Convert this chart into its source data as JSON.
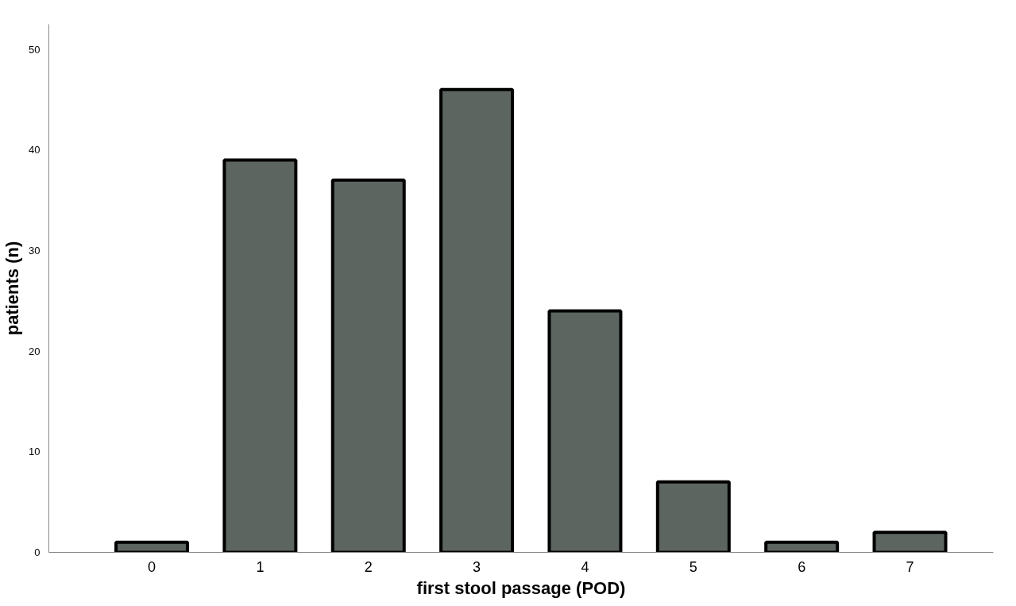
{
  "chart_data": {
    "type": "bar",
    "xlabel": "first stool passage (POD)",
    "ylabel": "patients (n)",
    "categories": [
      "0",
      "1",
      "2",
      "3",
      "4",
      "5",
      "6",
      "7"
    ],
    "values": [
      1,
      39,
      37,
      46,
      24,
      7,
      1,
      2
    ],
    "color": "#5c6560",
    "ylim": [
      0,
      52.5
    ],
    "yticks": [
      0,
      10,
      20,
      30,
      40,
      50
    ],
    "grid": false
  }
}
